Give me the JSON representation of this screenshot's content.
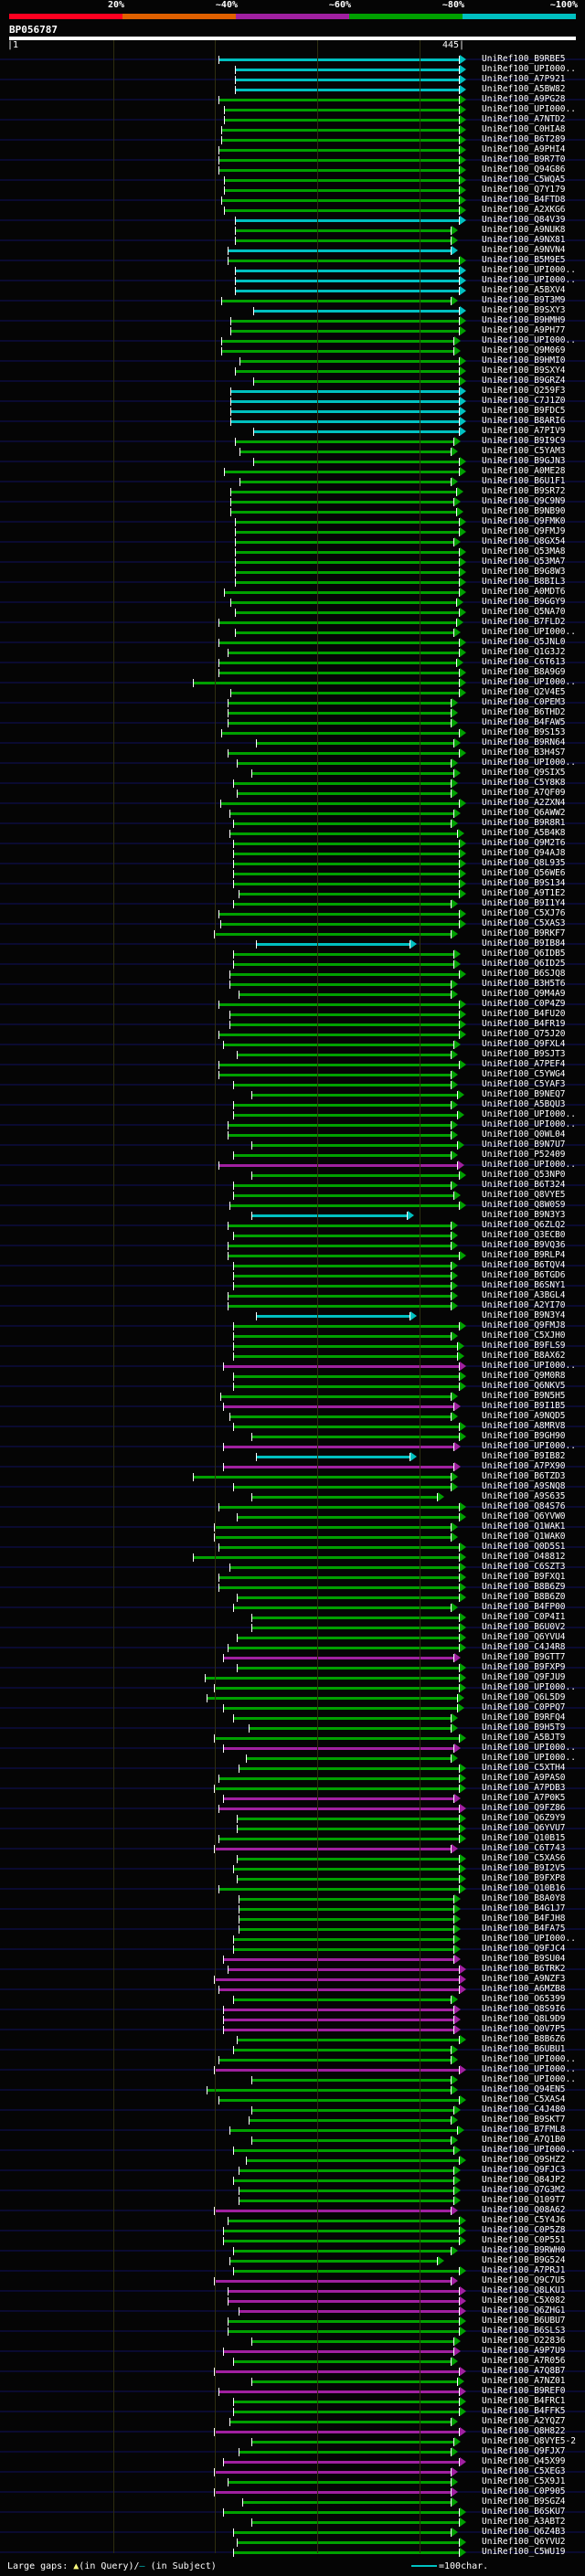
{
  "scale": {
    "labels": [
      "20%",
      "~40%",
      "~60%",
      "~80%",
      "~100%"
    ],
    "colors": [
      "#ff0020",
      "#e06000",
      "#a020a0",
      "#00a000",
      "#00c0c0"
    ]
  },
  "query": {
    "name": "BP056787",
    "start_label": "|1",
    "end_label": "445|",
    "length": 445
  },
  "grid_positions": [
    100,
    200,
    300,
    400
  ],
  "colors": {
    "g": "#00a000",
    "c": "#00c0c0",
    "m": "#a020a0"
  },
  "hits": [
    [
      "UniRef100_B9RBE5",
      203,
      445,
      "c"
    ],
    [
      "UniRef100_UPI000..",
      219,
      445,
      "c"
    ],
    [
      "UniRef100_A7P921",
      219,
      445,
      "c"
    ],
    [
      "UniRef100_A5BW82",
      219,
      445,
      "c"
    ],
    [
      "UniRef100_A9PG28",
      203,
      445,
      "g"
    ],
    [
      "UniRef100_UPI000..",
      209,
      445,
      "g"
    ],
    [
      "UniRef100_A7NTD2",
      209,
      445,
      "g"
    ],
    [
      "UniRef100_C0HIA8",
      206,
      445,
      "g"
    ],
    [
      "UniRef100_B6T289",
      206,
      445,
      "g"
    ],
    [
      "UniRef100_A9PHI4",
      203,
      445,
      "g"
    ],
    [
      "UniRef100_B9R7T0",
      203,
      445,
      "g"
    ],
    [
      "UniRef100_Q94G86",
      203,
      445,
      "g"
    ],
    [
      "UniRef100_C5WQA5",
      209,
      445,
      "g"
    ],
    [
      "UniRef100_Q7Y179",
      209,
      445,
      "g"
    ],
    [
      "UniRef100_B4FTD8",
      206,
      445,
      "g"
    ],
    [
      "UniRef100_A2XKG6",
      209,
      445,
      "g"
    ],
    [
      "UniRef100_Q84V39",
      219,
      445,
      "c"
    ],
    [
      "UniRef100_A9NUK8",
      219,
      437,
      "g"
    ],
    [
      "UniRef100_A9NX81",
      219,
      437,
      "g"
    ],
    [
      "UniRef100_A9NVN4",
      212,
      437,
      "c"
    ],
    [
      "UniRef100_B5M9E5",
      212,
      445,
      "g"
    ],
    [
      "UniRef100_UPI000..",
      219,
      445,
      "c"
    ],
    [
      "UniRef100_UPI000..",
      219,
      445,
      "c"
    ],
    [
      "UniRef100_A5BXV4",
      219,
      445,
      "c"
    ],
    [
      "UniRef100_B9T3M9",
      206,
      437,
      "g"
    ],
    [
      "UniRef100_B9SXY3",
      237,
      445,
      "c"
    ],
    [
      "UniRef100_B9HMH9",
      215,
      445,
      "g"
    ],
    [
      "UniRef100_A9PH77",
      215,
      445,
      "g"
    ],
    [
      "UniRef100_UPI000..",
      206,
      440,
      "g"
    ],
    [
      "UniRef100_Q9M069",
      206,
      440,
      "g"
    ],
    [
      "UniRef100_B9HMI0",
      224,
      445,
      "g"
    ],
    [
      "UniRef100_B9SXY4",
      219,
      445,
      "g"
    ],
    [
      "UniRef100_B9GRZ4",
      237,
      445,
      "g"
    ],
    [
      "UniRef100_Q259F3",
      215,
      445,
      "c"
    ],
    [
      "UniRef100_C7J1Z0",
      215,
      445,
      "c"
    ],
    [
      "UniRef100_B9FDC5",
      215,
      445,
      "c"
    ],
    [
      "UniRef100_B8ARI6",
      215,
      445,
      "c"
    ],
    [
      "UniRef100_A7PIV9",
      237,
      445,
      "c"
    ],
    [
      "UniRef100_B9I9C9",
      219,
      440,
      "g"
    ],
    [
      "UniRef100_C5YAM3",
      224,
      437,
      "g"
    ],
    [
      "UniRef100_B9GJN3",
      237,
      445,
      "g"
    ],
    [
      "UniRef100_A0ME28",
      209,
      445,
      "g"
    ],
    [
      "UniRef100_B6U1F1",
      224,
      437,
      "g"
    ],
    [
      "UniRef100_B9SR72",
      215,
      442,
      "g"
    ],
    [
      "UniRef100_Q9C9N9",
      215,
      440,
      "g"
    ],
    [
      "UniRef100_B9NB90",
      215,
      442,
      "g"
    ],
    [
      "UniRef100_Q9FMK0",
      219,
      445,
      "g"
    ],
    [
      "UniRef100_Q9FMJ9",
      219,
      445,
      "g"
    ],
    [
      "UniRef100_Q8GX54",
      219,
      440,
      "g"
    ],
    [
      "UniRef100_Q53MA8",
      219,
      445,
      "g"
    ],
    [
      "UniRef100_Q53MA7",
      219,
      445,
      "g"
    ],
    [
      "UniRef100_B9G8W3",
      219,
      445,
      "g"
    ],
    [
      "UniRef100_B8BIL3",
      219,
      445,
      "g"
    ],
    [
      "UniRef100_A0MDT6",
      209,
      445,
      "g"
    ],
    [
      "UniRef100_B9GGY9",
      215,
      442,
      "g"
    ],
    [
      "UniRef100_Q5NA70",
      219,
      445,
      "g"
    ],
    [
      "UniRef100_B7FLD2",
      203,
      442,
      "g"
    ],
    [
      "UniRef100_UPI000..",
      219,
      440,
      "g"
    ],
    [
      "UniRef100_Q5JNL0",
      203,
      445,
      "g"
    ],
    [
      "UniRef100_Q1G3J2",
      212,
      445,
      "g"
    ],
    [
      "UniRef100_C6T613",
      203,
      442,
      "g"
    ],
    [
      "UniRef100_B8A9G9",
      203,
      445,
      "g"
    ],
    [
      "UniRef100_UPI000..",
      178,
      445,
      "g"
    ],
    [
      "UniRef100_Q2V4E5",
      215,
      445,
      "g"
    ],
    [
      "UniRef100_C0PEM3",
      212,
      437,
      "g"
    ],
    [
      "UniRef100_B6THD2",
      212,
      437,
      "g"
    ],
    [
      "UniRef100_B4FAW5",
      212,
      437,
      "g"
    ],
    [
      "UniRef100_B9S153",
      206,
      445,
      "g"
    ],
    [
      "UniRef100_B9RN64",
      240,
      440,
      "g"
    ],
    [
      "UniRef100_B3H4S7",
      212,
      445,
      "g"
    ],
    [
      "UniRef100_UPI000..",
      221,
      437,
      "g"
    ],
    [
      "UniRef100_Q9SIX5",
      236,
      440,
      "g"
    ],
    [
      "UniRef100_C5Y8K8",
      218,
      437,
      "g"
    ],
    [
      "UniRef100_A7QF09",
      221,
      437,
      "g"
    ],
    [
      "UniRef100_A2ZXN4",
      205,
      445,
      "g"
    ],
    [
      "UniRef100_Q6AWW2",
      214,
      440,
      "g"
    ],
    [
      "UniRef100_B9R8R1",
      218,
      437,
      "g"
    ],
    [
      "UniRef100_A5B4K8",
      214,
      443,
      "g"
    ],
    [
      "UniRef100_Q9M2T6",
      218,
      445,
      "g"
    ],
    [
      "UniRef100_Q94AJ8",
      218,
      445,
      "g"
    ],
    [
      "UniRef100_Q8L935",
      218,
      445,
      "g"
    ],
    [
      "UniRef100_Q56WE6",
      218,
      445,
      "g"
    ],
    [
      "UniRef100_B9S134",
      218,
      445,
      "g"
    ],
    [
      "UniRef100_A9T1E2",
      223,
      445,
      "g"
    ],
    [
      "UniRef100_B9I1Y4",
      218,
      437,
      "g"
    ],
    [
      "UniRef100_C5XJ76",
      203,
      445,
      "g"
    ],
    [
      "UniRef100_C5XAS3",
      205,
      445,
      "g"
    ],
    [
      "UniRef100_B9RKF7",
      199,
      437,
      "g"
    ],
    [
      "UniRef100_B9IB84",
      240,
      397,
      "c"
    ],
    [
      "UniRef100_Q6IDB5",
      218,
      440,
      "g"
    ],
    [
      "UniRef100_Q6ID25",
      218,
      440,
      "g"
    ],
    [
      "UniRef100_B6SJQ8",
      214,
      445,
      "g"
    ],
    [
      "UniRef100_B3H5T6",
      214,
      437,
      "g"
    ],
    [
      "UniRef100_Q9M4A9",
      223,
      437,
      "g"
    ],
    [
      "UniRef100_C0P4Z9",
      203,
      445,
      "g"
    ],
    [
      "UniRef100_B4FU20",
      214,
      445,
      "g"
    ],
    [
      "UniRef100_B4FR19",
      214,
      445,
      "g"
    ],
    [
      "UniRef100_Q75J20",
      203,
      445,
      "g"
    ],
    [
      "UniRef100_Q9FXL4",
      208,
      440,
      "g"
    ],
    [
      "UniRef100_B9SJT3",
      221,
      437,
      "g"
    ],
    [
      "UniRef100_A7PEF4",
      203,
      445,
      "g"
    ],
    [
      "UniRef100_C5YWG4",
      203,
      437,
      "g"
    ],
    [
      "UniRef100_C5YAF3",
      218,
      437,
      "g"
    ],
    [
      "UniRef100_B9NEQ7",
      236,
      443,
      "g"
    ],
    [
      "UniRef100_A5BQU3",
      218,
      437,
      "g"
    ],
    [
      "UniRef100_UPI000..",
      218,
      443,
      "g"
    ],
    [
      "UniRef100_UPI000..",
      212,
      437,
      "g"
    ],
    [
      "UniRef100_Q0WL04",
      212,
      437,
      "g"
    ],
    [
      "UniRef100_B9N7U7",
      236,
      443,
      "g"
    ],
    [
      "UniRef100_P52409",
      218,
      437,
      "g"
    ],
    [
      "UniRef100_UPI000..",
      203,
      443,
      "m"
    ],
    [
      "UniRef100_Q53NP0",
      236,
      445,
      "g"
    ],
    [
      "UniRef100_B6T324",
      218,
      437,
      "g"
    ],
    [
      "UniRef100_Q8VYE5",
      218,
      440,
      "g"
    ],
    [
      "UniRef100_Q8W0S9",
      214,
      445,
      "g"
    ],
    [
      "UniRef100_B9N3Y3",
      236,
      394,
      "c"
    ],
    [
      "UniRef100_Q6ZLQ2",
      212,
      437,
      "g"
    ],
    [
      "UniRef100_Q3ECB0",
      218,
      437,
      "g"
    ],
    [
      "UniRef100_B9VQ36",
      212,
      437,
      "g"
    ],
    [
      "UniRef100_B9RLP4",
      212,
      445,
      "g"
    ],
    [
      "UniRef100_B6TQV4",
      218,
      437,
      "g"
    ],
    [
      "UniRef100_B6TGD6",
      218,
      437,
      "g"
    ],
    [
      "UniRef100_B6SNY1",
      218,
      437,
      "g"
    ],
    [
      "UniRef100_A3BGL4",
      212,
      437,
      "g"
    ],
    [
      "UniRef100_A2YI70",
      212,
      437,
      "g"
    ],
    [
      "UniRef100_B9N3Y4",
      240,
      397,
      "c"
    ],
    [
      "UniRef100_Q9FMJ8",
      218,
      445,
      "g"
    ],
    [
      "UniRef100_C5XJH0",
      218,
      437,
      "g"
    ],
    [
      "UniRef100_B9FLS9",
      218,
      443,
      "g"
    ],
    [
      "UniRef100_B8AX62",
      218,
      443,
      "g"
    ],
    [
      "UniRef100_UPI000..",
      208,
      445,
      "m"
    ],
    [
      "UniRef100_Q9M0R8",
      218,
      445,
      "g"
    ],
    [
      "UniRef100_Q6NKV5",
      218,
      445,
      "g"
    ],
    [
      "UniRef100_B9N5H5",
      205,
      437,
      "g"
    ],
    [
      "UniRef100_B9I1B5",
      208,
      440,
      "m"
    ],
    [
      "UniRef100_A9NQD5",
      214,
      437,
      "g"
    ],
    [
      "UniRef100_A8MRV8",
      218,
      445,
      "g"
    ],
    [
      "UniRef100_B9GH90",
      236,
      445,
      "g"
    ],
    [
      "UniRef100_UPI000..",
      208,
      440,
      "m"
    ],
    [
      "UniRef100_B9IB82",
      240,
      397,
      "c"
    ],
    [
      "UniRef100_A7PX90",
      208,
      440,
      "m"
    ],
    [
      "UniRef100_B6TZD3",
      178,
      437,
      "g"
    ],
    [
      "UniRef100_A9SNQ8",
      218,
      437,
      "g"
    ],
    [
      "UniRef100_A9S635",
      236,
      424,
      "g"
    ],
    [
      "UniRef100_Q84S76",
      203,
      445,
      "g"
    ],
    [
      "UniRef100_Q6YVW0",
      221,
      445,
      "g"
    ],
    [
      "UniRef100_Q1WAK1",
      199,
      437,
      "g"
    ],
    [
      "UniRef100_Q1WAK0",
      199,
      437,
      "g"
    ],
    [
      "UniRef100_Q0D5S1",
      203,
      445,
      "g"
    ],
    [
      "UniRef100_O48812",
      178,
      445,
      "g"
    ],
    [
      "UniRef100_C6SZT3",
      214,
      445,
      "g"
    ],
    [
      "UniRef100_B9FXQ1",
      203,
      445,
      "g"
    ],
    [
      "UniRef100_B8B6Z9",
      203,
      445,
      "g"
    ],
    [
      "UniRef100_B8B6Z0",
      221,
      445,
      "g"
    ],
    [
      "UniRef100_B4FP00",
      218,
      437,
      "g"
    ],
    [
      "UniRef100_C0P4I1",
      236,
      445,
      "g"
    ],
    [
      "UniRef100_B6U0V2",
      236,
      445,
      "g"
    ],
    [
      "UniRef100_Q6YVU4",
      221,
      445,
      "g"
    ],
    [
      "UniRef100_C4J4R8",
      212,
      445,
      "g"
    ],
    [
      "UniRef100_B9GTT7",
      208,
      440,
      "m"
    ],
    [
      "UniRef100_B9FXP9",
      221,
      445,
      "g"
    ],
    [
      "UniRef100_Q9FJU9",
      190,
      445,
      "g"
    ],
    [
      "UniRef100_UPI000..",
      199,
      445,
      "g"
    ],
    [
      "UniRef100_Q6L5D9",
      192,
      443,
      "g"
    ],
    [
      "UniRef100_C0PPQ7",
      208,
      443,
      "g"
    ],
    [
      "UniRef100_B9RFQ4",
      218,
      437,
      "g"
    ],
    [
      "UniRef100_B9H5T9",
      233,
      437,
      "g"
    ],
    [
      "UniRef100_A5BJT9",
      199,
      445,
      "g"
    ],
    [
      "UniRef100_UPI000..",
      208,
      440,
      "m"
    ],
    [
      "UniRef100_UPI000..",
      230,
      437,
      "g"
    ],
    [
      "UniRef100_C5XTH4",
      223,
      445,
      "g"
    ],
    [
      "UniRef100_A9PAS0",
      203,
      445,
      "g"
    ],
    [
      "UniRef100_A7PDB3",
      199,
      445,
      "g"
    ],
    [
      "UniRef100_A7P0K5",
      208,
      440,
      "m"
    ],
    [
      "UniRef100_Q9FZ86",
      203,
      445,
      "m"
    ],
    [
      "UniRef100_Q6Z9Y9",
      221,
      445,
      "g"
    ],
    [
      "UniRef100_Q6YVU7",
      221,
      445,
      "g"
    ],
    [
      "UniRef100_Q10B15",
      203,
      445,
      "g"
    ],
    [
      "UniRef100_C6T743",
      199,
      437,
      "m"
    ],
    [
      "UniRef100_C5XAS6",
      221,
      445,
      "g"
    ],
    [
      "UniRef100_B9I2V5",
      218,
      445,
      "g"
    ],
    [
      "UniRef100_B9FXP8",
      221,
      445,
      "g"
    ],
    [
      "UniRef100_Q10B16",
      203,
      445,
      "g"
    ],
    [
      "UniRef100_B8A0Y8",
      223,
      440,
      "g"
    ],
    [
      "UniRef100_B4G1J7",
      223,
      440,
      "g"
    ],
    [
      "UniRef100_B4FJH8",
      223,
      440,
      "g"
    ],
    [
      "UniRef100_B4FA75",
      223,
      440,
      "g"
    ],
    [
      "UniRef100_UPI000..",
      218,
      440,
      "g"
    ],
    [
      "UniRef100_Q9FJC4",
      218,
      440,
      "g"
    ],
    [
      "UniRef100_B9SU04",
      208,
      440,
      "m"
    ],
    [
      "UniRef100_B6TRK2",
      212,
      445,
      "m"
    ],
    [
      "UniRef100_A9NZF3",
      199,
      445,
      "m"
    ],
    [
      "UniRef100_A6MZB8",
      203,
      445,
      "m"
    ],
    [
      "UniRef100_O65399",
      218,
      437,
      "g"
    ],
    [
      "UniRef100_Q8S9I6",
      208,
      440,
      "m"
    ],
    [
      "UniRef100_Q8L9D9",
      208,
      440,
      "m"
    ],
    [
      "UniRef100_Q0V7P5",
      208,
      440,
      "m"
    ],
    [
      "UniRef100_B8B6Z6",
      221,
      445,
      "g"
    ],
    [
      "UniRef100_B6UBU1",
      218,
      437,
      "g"
    ],
    [
      "UniRef100_UPI000..",
      203,
      437,
      "g"
    ],
    [
      "UniRef100_UPI000..",
      199,
      445,
      "m"
    ],
    [
      "UniRef100_UPI000..",
      236,
      437,
      "g"
    ],
    [
      "UniRef100_Q94EN5",
      192,
      437,
      "g"
    ],
    [
      "UniRef100_C5XAS4",
      203,
      445,
      "g"
    ],
    [
      "UniRef100_C4J480",
      236,
      440,
      "g"
    ],
    [
      "UniRef100_B9SKT7",
      233,
      437,
      "g"
    ],
    [
      "UniRef100_B7FML8",
      214,
      443,
      "g"
    ],
    [
      "UniRef100_A7Q1B0",
      236,
      437,
      "g"
    ],
    [
      "UniRef100_UPI000..",
      218,
      440,
      "g"
    ],
    [
      "UniRef100_Q9SHZ2",
      230,
      445,
      "g"
    ],
    [
      "UniRef100_Q9FJC3",
      223,
      440,
      "g"
    ],
    [
      "UniRef100_Q84JP2",
      218,
      440,
      "g"
    ],
    [
      "UniRef100_Q7G3M2",
      223,
      440,
      "g"
    ],
    [
      "UniRef100_Q109T7",
      223,
      440,
      "g"
    ],
    [
      "UniRef100_Q08A62",
      199,
      437,
      "m"
    ],
    [
      "UniRef100_C5Y4J6",
      212,
      445,
      "g"
    ],
    [
      "UniRef100_C0P5Z8",
      208,
      445,
      "g"
    ],
    [
      "UniRef100_C0P551",
      208,
      445,
      "g"
    ],
    [
      "UniRef100_B9RWH0",
      218,
      437,
      "g"
    ],
    [
      "UniRef100_B9G524",
      214,
      424,
      "g"
    ],
    [
      "UniRef100_A7PRJ1",
      218,
      445,
      "g"
    ],
    [
      "UniRef100_Q9C7U5",
      199,
      437,
      "m"
    ],
    [
      "UniRef100_Q8LKU1",
      212,
      445,
      "m"
    ],
    [
      "UniRef100_C5X082",
      212,
      445,
      "m"
    ],
    [
      "UniRef100_Q6ZHG1",
      223,
      445,
      "m"
    ],
    [
      "UniRef100_B6UBU7",
      212,
      445,
      "g"
    ],
    [
      "UniRef100_B6SLS3",
      212,
      445,
      "g"
    ],
    [
      "UniRef100_O22836",
      236,
      440,
      "g"
    ],
    [
      "UniRef100_A9P7U9",
      208,
      440,
      "m"
    ],
    [
      "UniRef100_A7R056",
      218,
      437,
      "g"
    ],
    [
      "UniRef100_A7Q8B7",
      199,
      445,
      "m"
    ],
    [
      "UniRef100_A7NZ01",
      236,
      443,
      "g"
    ],
    [
      "UniRef100_B9REF0",
      203,
      445,
      "m"
    ],
    [
      "UniRef100_B4FRC1",
      218,
      445,
      "g"
    ],
    [
      "UniRef100_B4FFK5",
      218,
      445,
      "g"
    ],
    [
      "UniRef100_A2YQZ7",
      214,
      437,
      "g"
    ],
    [
      "UniRef100_Q8H822",
      199,
      445,
      "m"
    ],
    [
      "UniRef100_Q8VYE5-2",
      236,
      440,
      "g"
    ],
    [
      "UniRef100_Q9FJX7",
      223,
      437,
      "g"
    ],
    [
      "UniRef100_Q45X99",
      208,
      445,
      "m"
    ],
    [
      "UniRef100_C5XEG3",
      199,
      437,
      "m"
    ],
    [
      "UniRef100_C5X9J1",
      212,
      437,
      "g"
    ],
    [
      "UniRef100_C0P905",
      199,
      437,
      "m"
    ],
    [
      "UniRef100_B9SGZ4",
      227,
      437,
      "g"
    ],
    [
      "UniRef100_B6SKU7",
      208,
      445,
      "g"
    ],
    [
      "UniRef100_A3ABT2",
      236,
      445,
      "g"
    ],
    [
      "UniRef100_Q6Z4B3",
      218,
      437,
      "g"
    ],
    [
      "UniRef100_Q6YVU2",
      221,
      445,
      "g"
    ],
    [
      "UniRef100_C5WU19",
      218,
      445,
      "g"
    ]
  ],
  "footer": {
    "gaps_label": "Large gaps:",
    "query_gap_icon": "▲",
    "query_gap_text": "(in Query)/",
    "subject_gap_icon": "—",
    "subject_gap_text": " (in Subject)",
    "legend_text": "=100char."
  }
}
